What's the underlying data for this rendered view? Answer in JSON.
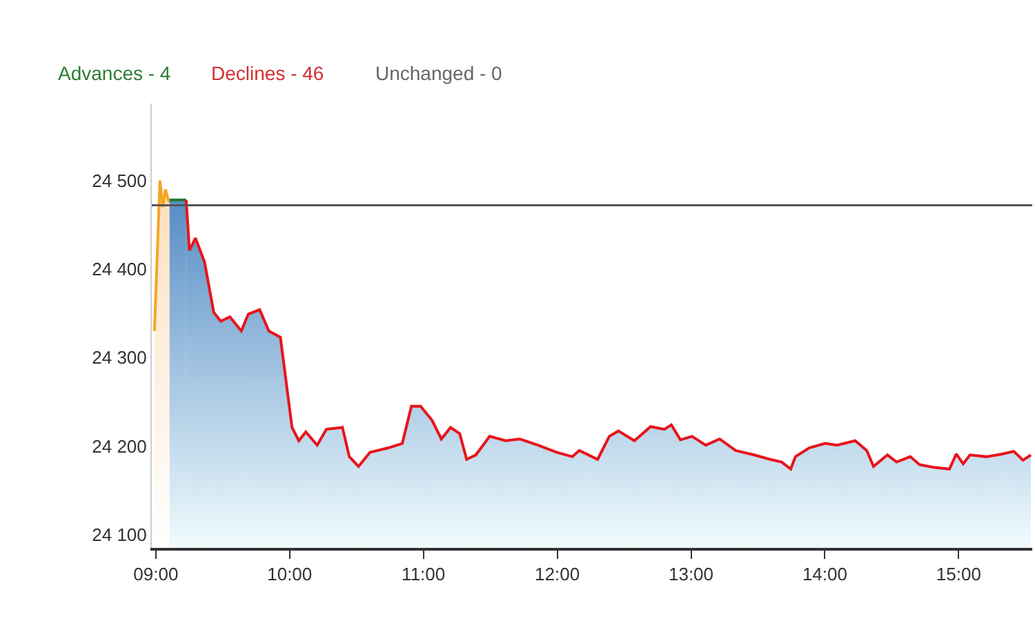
{
  "chart_data": {
    "type": "area",
    "annotations": [
      "Advances - 4",
      "Declines - 46",
      "Unchanged - 0"
    ],
    "series": [
      {
        "color": "#f5a623",
        "x": [
          8.99,
          9.031,
          9.052,
          9.072,
          9.093,
          9.113
        ],
        "values": [
          24330,
          24500,
          24470,
          24490,
          24478,
          24475
        ]
      },
      {
        "color": "#1e7b34",
        "x": [
          9.103,
          9.227
        ],
        "values": [
          24478,
          24478
        ]
      },
      {
        "color": "#e8141c",
        "x": [
          9.227,
          9.251,
          9.296,
          9.364,
          9.433,
          9.485,
          9.554,
          9.639,
          9.691,
          9.776,
          9.845,
          9.931,
          10.018,
          10.069,
          10.121,
          10.206,
          10.275,
          10.395,
          10.446,
          10.515,
          10.601,
          10.739,
          10.842,
          10.91,
          10.979,
          11.065,
          11.134,
          11.203,
          11.271,
          11.323,
          11.392,
          11.495,
          11.615,
          11.719,
          11.856,
          11.993,
          12.113,
          12.165,
          12.302,
          12.389,
          12.457,
          12.577,
          12.698,
          12.801,
          12.853,
          12.921,
          13.007,
          13.11,
          13.214,
          13.333,
          13.471,
          13.591,
          13.677,
          13.745,
          13.78,
          13.884,
          14.003,
          14.09,
          14.227,
          14.313,
          14.364,
          14.468,
          14.536,
          14.639,
          14.708,
          14.811,
          14.931,
          14.982,
          15.034,
          15.085,
          15.206,
          15.326,
          15.412,
          15.481,
          15.54
        ],
        "values": [
          24478,
          24421,
          24435,
          24408,
          24351,
          24341,
          24346,
          24330,
          24349,
          24354,
          24330,
          24323,
          24221,
          24206,
          24216,
          24201,
          24219,
          24221,
          24188,
          24177,
          24193,
          24198,
          24203,
          24245,
          24245,
          24229,
          24208,
          24221,
          24214,
          24185,
          24190,
          24211,
          24206,
          24208,
          24201,
          24193,
          24188,
          24195,
          24185,
          24211,
          24217,
          24206,
          24222,
          24219,
          24224,
          24207,
          24211,
          24201,
          24208,
          24195,
          24190,
          24185,
          24182,
          24174,
          24188,
          24198,
          24203,
          24201,
          24206,
          24195,
          24177,
          24190,
          24182,
          24188,
          24179,
          24176,
          24174,
          24191,
          24180,
          24190,
          24188,
          24191,
          24194,
          24184,
          24190
        ]
      }
    ],
    "ref_lines": [
      {
        "axis": "y",
        "value": 24472,
        "color": "#555555"
      }
    ],
    "xlim": [
      8.97,
      15.55
    ],
    "xticks": [
      {
        "value": 9,
        "label": "09:00"
      },
      {
        "value": 10,
        "label": "10:00"
      },
      {
        "value": 11,
        "label": "11:00"
      },
      {
        "value": 12,
        "label": "12:00"
      },
      {
        "value": 13,
        "label": "13:00"
      },
      {
        "value": 14,
        "label": "14:00"
      },
      {
        "value": 15,
        "label": "15:00"
      }
    ],
    "ylim": [
      24085,
      24587
    ],
    "yticks": [
      {
        "value": 24100,
        "label": "24 100"
      },
      {
        "value": 24200,
        "label": "24 200"
      },
      {
        "value": 24300,
        "label": "24 300"
      },
      {
        "value": 24400,
        "label": "24 400"
      },
      {
        "value": 24500,
        "label": "24 500"
      }
    ],
    "line_style": "solid"
  }
}
